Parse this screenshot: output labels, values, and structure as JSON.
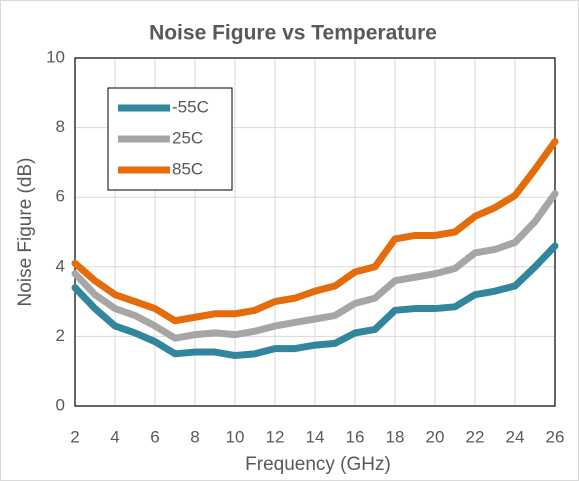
{
  "chart_data": {
    "type": "line",
    "title": "Noise Figure vs Temperature",
    "x_label": "Frequency (GHz)",
    "y_label": "Noise Figure (dB)",
    "x": [
      2,
      3,
      4,
      5,
      6,
      7,
      8,
      9,
      10,
      11,
      12,
      13,
      14,
      15,
      16,
      17,
      18,
      19,
      20,
      21,
      22,
      23,
      24,
      25,
      26
    ],
    "series": [
      {
        "name": "-55C",
        "color": "#31859c",
        "values": [
          3.4,
          2.8,
          2.3,
          2.1,
          1.85,
          1.5,
          1.55,
          1.55,
          1.45,
          1.5,
          1.65,
          1.65,
          1.75,
          1.8,
          2.1,
          2.2,
          2.75,
          2.8,
          2.8,
          2.85,
          3.2,
          3.3,
          3.45,
          4.0,
          4.6
        ]
      },
      {
        "name": "25C",
        "color": "#a6a6a6",
        "values": [
          3.8,
          3.2,
          2.8,
          2.6,
          2.3,
          1.95,
          2.05,
          2.1,
          2.05,
          2.15,
          2.3,
          2.4,
          2.5,
          2.6,
          2.95,
          3.1,
          3.6,
          3.7,
          3.8,
          3.95,
          4.4,
          4.5,
          4.7,
          5.3,
          6.1
        ]
      },
      {
        "name": "85C",
        "color": "#e46c0a",
        "values": [
          4.1,
          3.6,
          3.2,
          3.0,
          2.8,
          2.45,
          2.55,
          2.65,
          2.65,
          2.75,
          3.0,
          3.1,
          3.3,
          3.45,
          3.85,
          4.0,
          4.8,
          4.9,
          4.9,
          5.0,
          5.45,
          5.7,
          6.05,
          6.8,
          7.6
        ]
      }
    ],
    "xlim": [
      2,
      26
    ],
    "xticks": [
      2,
      4,
      6,
      8,
      10,
      12,
      14,
      16,
      18,
      20,
      22,
      24,
      26
    ],
    "ylim": [
      0,
      10
    ],
    "yticks": [
      0,
      2,
      4,
      6,
      8,
      10
    ],
    "grid": true,
    "legend": "upper left"
  }
}
